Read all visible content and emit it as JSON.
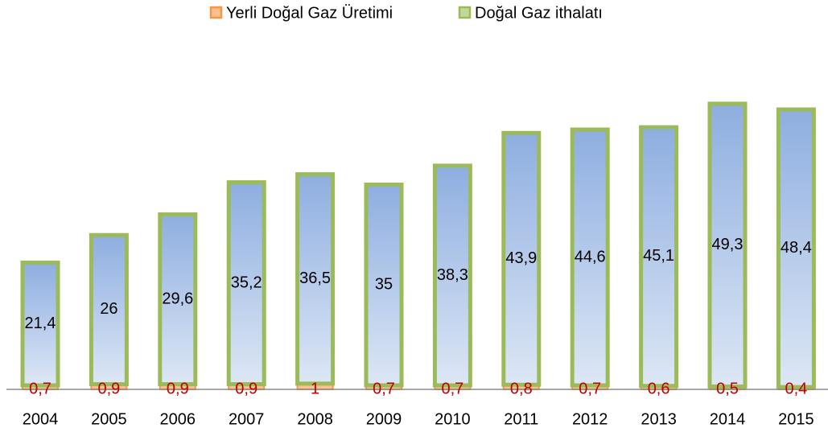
{
  "chart_data": {
    "type": "bar",
    "stacked": true,
    "categories": [
      "2004",
      "2005",
      "2006",
      "2007",
      "2008",
      "2009",
      "2010",
      "2011",
      "2012",
      "2013",
      "2014",
      "2015"
    ],
    "series": [
      {
        "name": "Yerli Doğal Gaz Üretimi",
        "color": "#f79646",
        "values": [
          0.7,
          0.9,
          0.9,
          0.9,
          1,
          0.7,
          0.7,
          0.8,
          0.7,
          0.6,
          0.5,
          0.4
        ],
        "value_labels": [
          "0,7",
          "0,9",
          "0,9",
          "0,9",
          "1",
          "0,7",
          "0,7",
          "0,8",
          "0,7",
          "0,6",
          "0,5",
          "0,4"
        ]
      },
      {
        "name": "Doğal Gaz ithalatı",
        "color": "#9bbb59",
        "values": [
          21.4,
          26,
          29.6,
          35.2,
          36.5,
          35,
          38.3,
          43.9,
          44.6,
          45.1,
          49.3,
          48.4
        ],
        "value_labels": [
          "21,4",
          "26",
          "29,6",
          "35,2",
          "36,5",
          "35",
          "38,3",
          "43,9",
          "44,6",
          "45,1",
          "49,3",
          "48,4"
        ]
      }
    ]
  }
}
